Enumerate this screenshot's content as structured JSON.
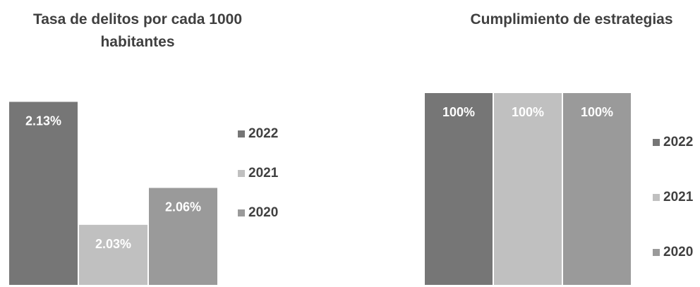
{
  "chart_data": [
    {
      "type": "bar",
      "title": "Tasa de delitos por cada 1000 habitantes",
      "categories": [
        "2022",
        "2021",
        "2020"
      ],
      "values": [
        2.13,
        2.03,
        2.06
      ],
      "data_labels": [
        "2.13%",
        "2.03%",
        "2.06%"
      ],
      "colors": [
        "#767676",
        "#c0c0c0",
        "#9a9a9a"
      ],
      "legend": [
        "2022",
        "2021",
        "2020"
      ],
      "legend_position": "right",
      "grid": false,
      "ylim": [
        1.98,
        2.14
      ]
    },
    {
      "type": "bar",
      "title": "Cumplimiento de estrategias",
      "categories": [
        "2022",
        "2021",
        "2020"
      ],
      "values": [
        100,
        100,
        100
      ],
      "data_labels": [
        "100%",
        "100%",
        "100%"
      ],
      "colors": [
        "#767676",
        "#c0c0c0",
        "#9a9a9a"
      ],
      "legend": [
        "2022",
        "2021",
        "2020"
      ],
      "legend_position": "right",
      "grid": false,
      "ylim": [
        0,
        100
      ]
    }
  ]
}
